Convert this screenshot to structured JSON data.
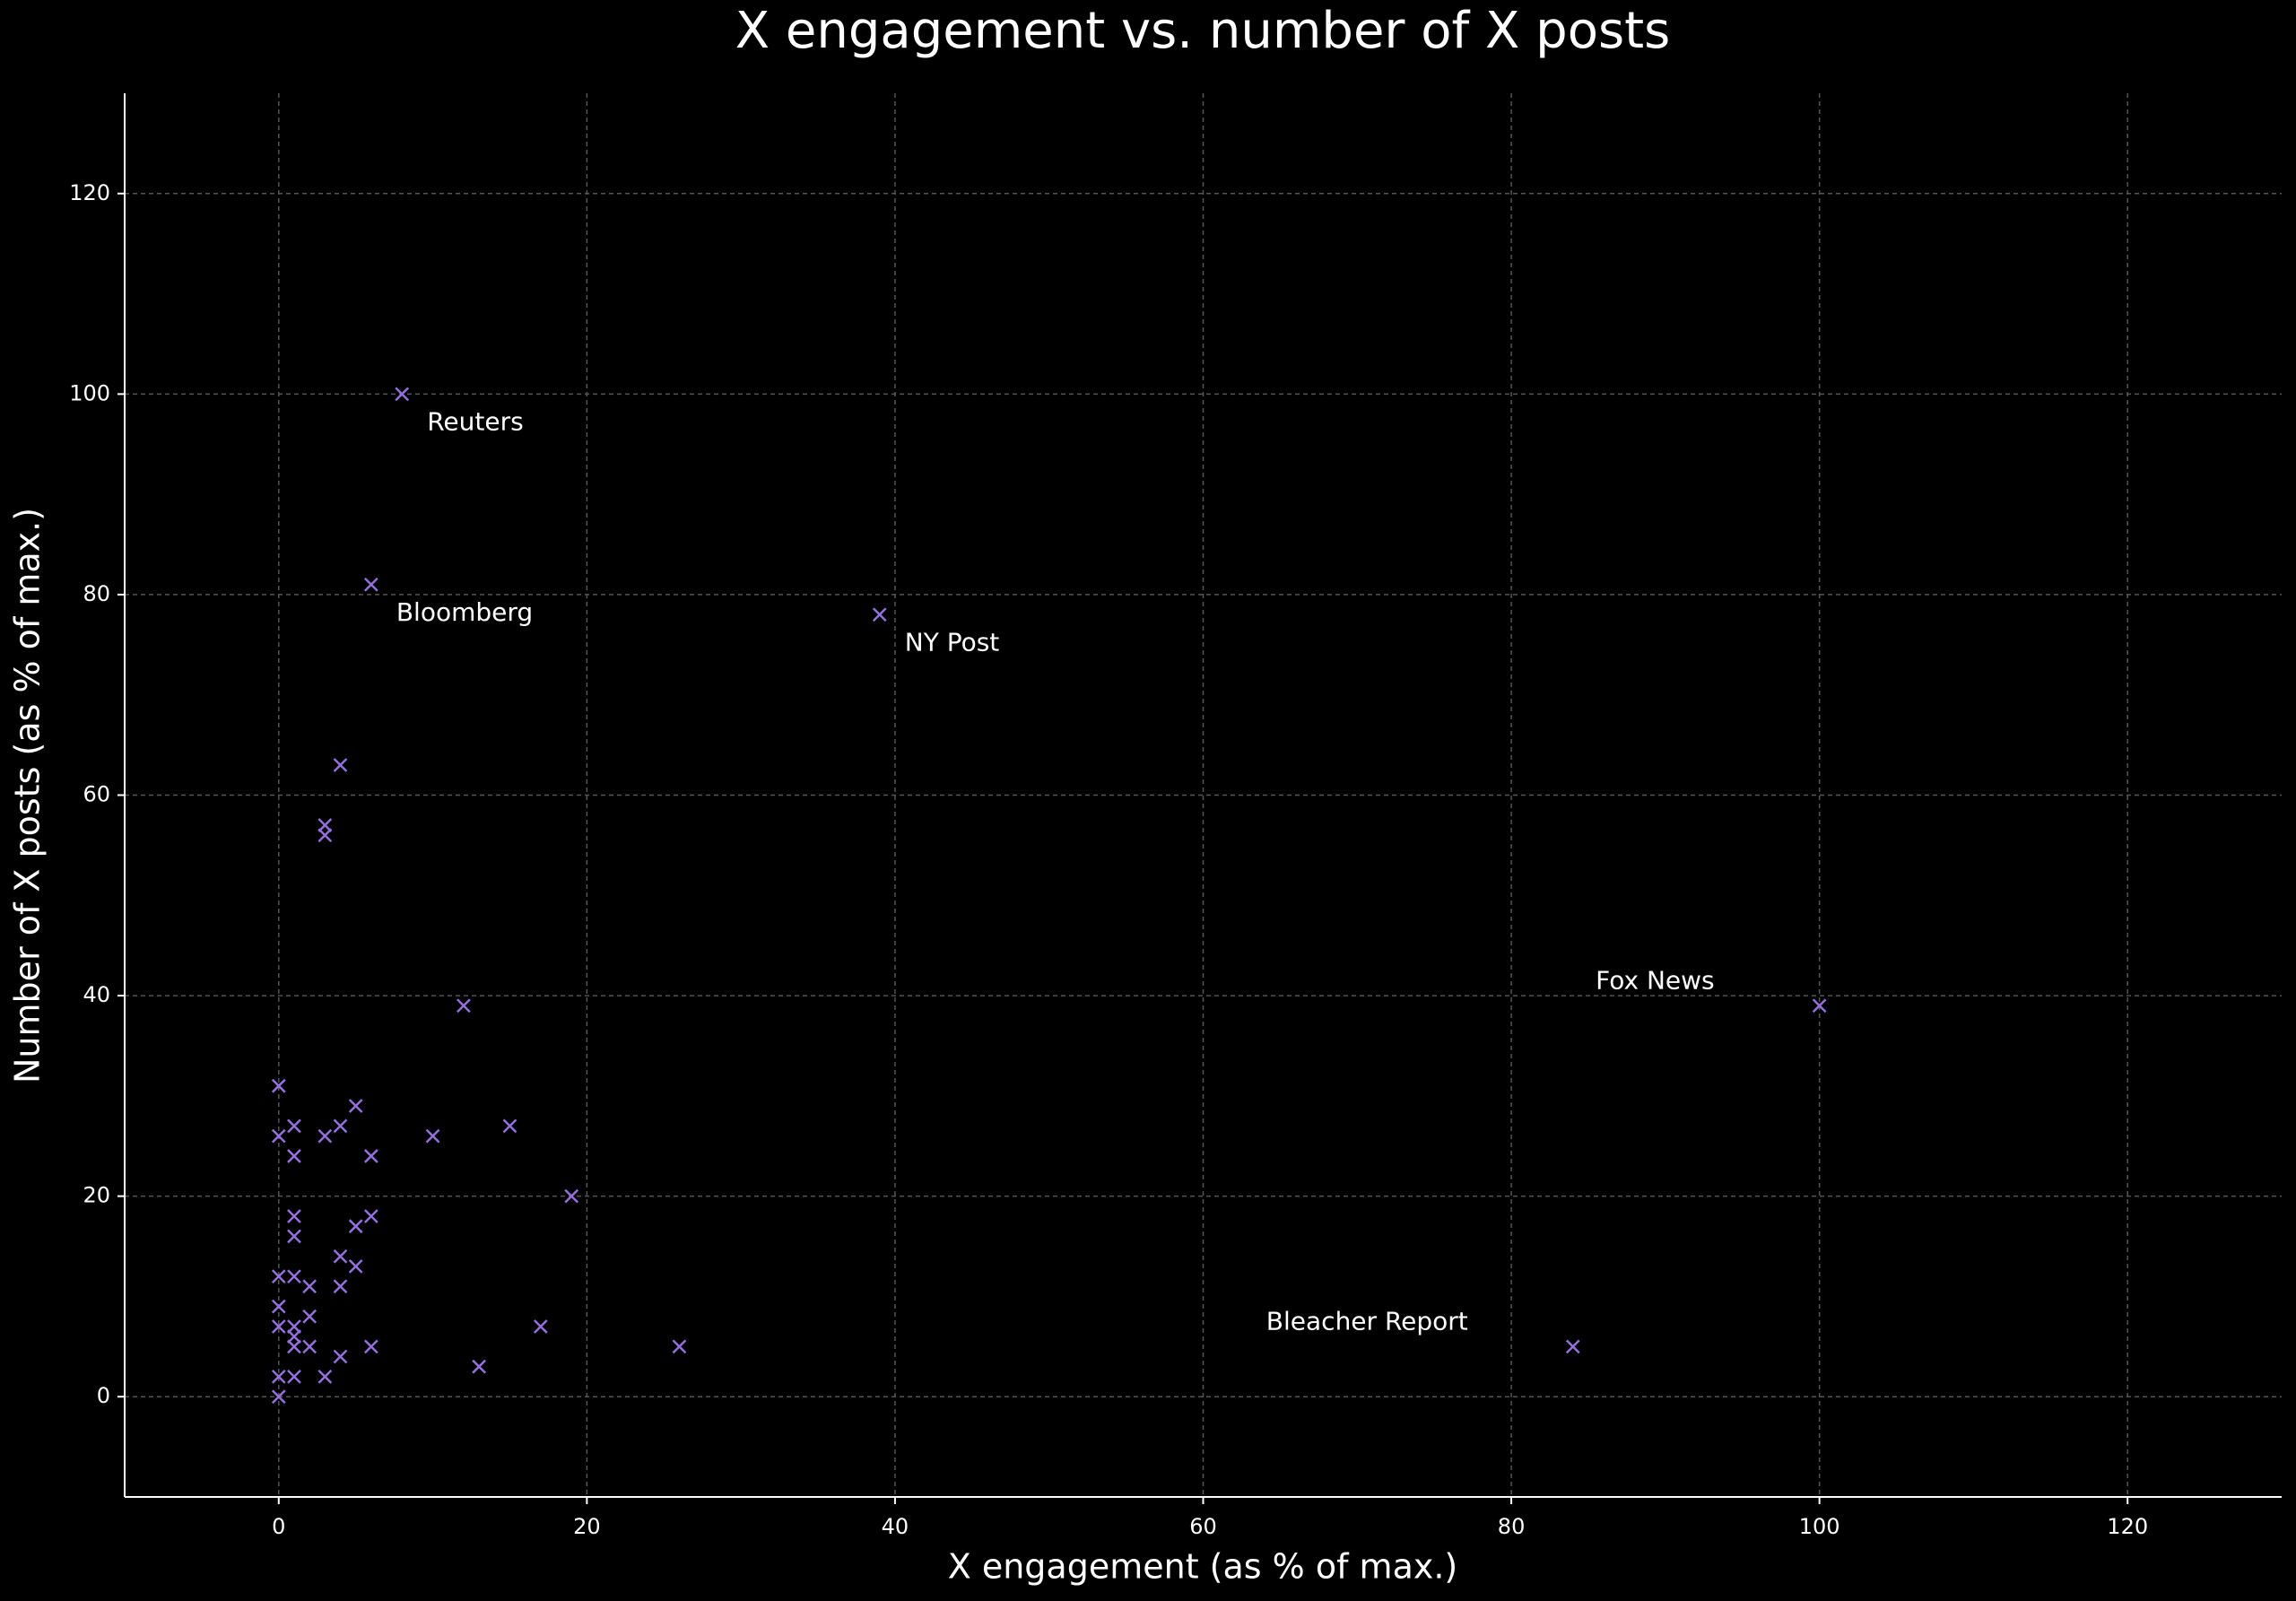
{
  "chart_data": {
    "type": "scatter",
    "title": "X engagement vs. number of X posts",
    "xlabel": "X engagement (as % of max.)",
    "ylabel": "Number of X posts (as % of max.)",
    "marker": "x",
    "color": "#9370db",
    "grid": true,
    "x": [
      8,
      6,
      39,
      4,
      3,
      3,
      12,
      100,
      0,
      5,
      1,
      4,
      15,
      0,
      3,
      10,
      1,
      6,
      19,
      1,
      6,
      5,
      1,
      4,
      5,
      0,
      1,
      2,
      4,
      0,
      2,
      0,
      1,
      17,
      1,
      1,
      2,
      6,
      26,
      84,
      4,
      13,
      0,
      1,
      3,
      0
    ],
    "y": [
      100,
      81,
      78,
      63,
      57,
      56,
      39,
      39,
      31,
      29,
      27,
      27,
      27,
      26,
      26,
      26,
      24,
      24,
      20,
      18,
      18,
      17,
      16,
      14,
      13,
      12,
      12,
      11,
      11,
      9,
      8,
      7,
      7,
      7,
      6,
      5,
      5,
      5,
      5,
      5,
      4,
      3,
      2,
      2,
      2,
      0
    ],
    "labels": [
      "Reuters",
      "Bloomberg",
      "NY Post",
      null,
      null,
      null,
      null,
      "Fox News",
      null,
      null,
      null,
      null,
      null,
      null,
      null,
      null,
      null,
      null,
      null,
      null,
      null,
      null,
      null,
      null,
      null,
      null,
      null,
      null,
      null,
      null,
      null,
      null,
      null,
      null,
      null,
      null,
      null,
      null,
      null,
      "Bleacher Report",
      null,
      null,
      null,
      null,
      null,
      null
    ],
    "xlim": [
      -10,
      130
    ],
    "ylim": [
      -10,
      130
    ],
    "xticks": [
      0,
      20,
      40,
      60,
      80,
      100,
      120
    ],
    "yticks": [
      0,
      20,
      40,
      60,
      80,
      100,
      120
    ]
  }
}
